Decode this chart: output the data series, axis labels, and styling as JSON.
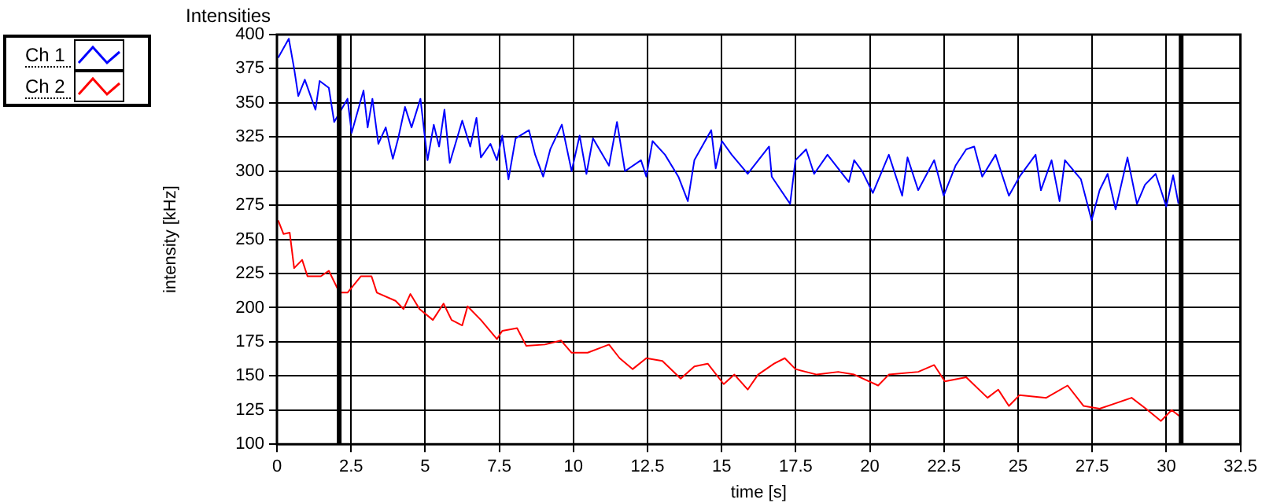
{
  "chart_data": {
    "type": "line",
    "title": "Intensities",
    "xlabel": "time [s]",
    "ylabel": "intensity [kHz]",
    "xlim": [
      0,
      32.5
    ],
    "xticks": [
      0,
      2.5,
      5,
      7.5,
      10,
      12.5,
      15,
      17.5,
      20,
      22.5,
      25,
      27.5,
      30,
      32.5
    ],
    "ylim": [
      100,
      400
    ],
    "yticks": [
      100,
      125,
      150,
      175,
      200,
      225,
      250,
      275,
      300,
      325,
      350,
      375,
      400
    ],
    "grid": true,
    "legend": "top left",
    "marker": "none",
    "line_style": "solid",
    "ref_lines": [
      {
        "axis": "x",
        "value": 2.1,
        "color": "#000000"
      },
      {
        "axis": "x",
        "value": 30.5,
        "color": "#000000"
      }
    ],
    "series": [
      {
        "name": "Ch 1",
        "color": "#0000ff",
        "x": [
          0.04,
          0.4,
          0.58,
          0.72,
          0.94,
          1.3,
          1.44,
          1.75,
          1.93,
          2.38,
          2.52,
          2.92,
          3.06,
          3.22,
          3.42,
          3.67,
          3.91,
          4.09,
          4.32,
          4.54,
          4.84,
          5.08,
          5.29,
          5.47,
          5.65,
          5.83,
          6.25,
          6.52,
          6.73,
          6.88,
          7.2,
          7.42,
          7.6,
          7.81,
          8.05,
          8.5,
          8.71,
          8.98,
          9.22,
          9.61,
          9.94,
          10.21,
          10.44,
          10.66,
          11.2,
          11.47,
          11.74,
          12.28,
          12.46,
          12.67,
          13.09,
          13.54,
          13.86,
          14.08,
          14.65,
          14.8,
          15.01,
          15.34,
          15.88,
          16.6,
          16.69,
          17.31,
          17.49,
          17.85,
          18.12,
          18.57,
          19.29,
          19.47,
          19.74,
          20.1,
          20.64,
          21.09,
          21.27,
          21.63,
          22.17,
          22.49,
          22.89,
          23.25,
          23.52,
          23.79,
          24.24,
          24.69,
          25.05,
          25.59,
          25.77,
          26.13,
          26.4,
          26.58,
          27.12,
          27.48,
          27.75,
          28.02,
          28.29,
          28.69,
          29.01,
          29.28,
          29.64,
          30.0,
          30.23,
          30.41
        ],
        "values": [
          383,
          397,
          375,
          355,
          367,
          345,
          366,
          361,
          336,
          353,
          328,
          359,
          332,
          353,
          320,
          332,
          309,
          324,
          347,
          332,
          353,
          308,
          334,
          318,
          345,
          306,
          337,
          318,
          339,
          310,
          320,
          308,
          326,
          294,
          324,
          330,
          312,
          296,
          316,
          334,
          300,
          326,
          298,
          324,
          304,
          336,
          300,
          308,
          296,
          322,
          312,
          296,
          278,
          308,
          330,
          302,
          322,
          312,
          298,
          318,
          296,
          276,
          308,
          316,
          298,
          312,
          292,
          308,
          300,
          284,
          312,
          282,
          310,
          286,
          308,
          282,
          304,
          316,
          318,
          296,
          312,
          282,
          296,
          312,
          286,
          308,
          278,
          308,
          294,
          264,
          286,
          298,
          272,
          310,
          276,
          290,
          298,
          274,
          297,
          276
        ]
      },
      {
        "name": "Ch 2",
        "color": "#ff0000",
        "x": [
          0.04,
          0.22,
          0.43,
          0.58,
          0.85,
          1.03,
          1.48,
          1.75,
          2.11,
          2.38,
          2.83,
          3.19,
          3.37,
          4.0,
          4.27,
          4.5,
          4.81,
          5.26,
          5.62,
          5.89,
          6.25,
          6.43,
          6.88,
          7.42,
          7.6,
          8.1,
          8.41,
          9.04,
          9.58,
          9.94,
          10.48,
          11.2,
          11.56,
          12.0,
          12.46,
          13.0,
          13.62,
          14.08,
          14.53,
          15.07,
          15.43,
          15.88,
          16.23,
          16.77,
          17.13,
          17.49,
          18.21,
          18.93,
          19.47,
          20.28,
          20.64,
          21.63,
          22.17,
          22.53,
          23.25,
          23.97,
          24.33,
          24.69,
          25.05,
          25.95,
          26.67,
          27.21,
          27.75,
          28.29,
          28.83,
          29.37,
          29.82,
          30.18,
          30.54
        ],
        "values": [
          264,
          254,
          255,
          229,
          235,
          223,
          223,
          227,
          211,
          211,
          223,
          223,
          211,
          205,
          199,
          210,
          199,
          191,
          203,
          191,
          187,
          201,
          191,
          177,
          183,
          185,
          172,
          173,
          176,
          167,
          167,
          173,
          163,
          155,
          163,
          161,
          148,
          157,
          159,
          144,
          151,
          140,
          151,
          159,
          163,
          155,
          151,
          153,
          151,
          143,
          151,
          153,
          158,
          146,
          149,
          134,
          140,
          128,
          136,
          134,
          143,
          128,
          126,
          130,
          134,
          125,
          117,
          125,
          119
        ]
      }
    ]
  }
}
